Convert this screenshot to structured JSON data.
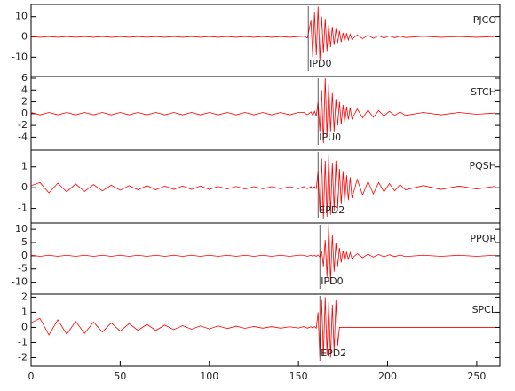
{
  "chart_data": [
    {
      "type": "line",
      "title": "PJCO",
      "color": "#ff0000",
      "pick": {
        "x": 155.5,
        "label": "IPD0"
      },
      "xlim": [
        0,
        263
      ],
      "ylim": [
        -19.5,
        16
      ],
      "yticks": [
        10,
        0,
        -10
      ],
      "x": [
        0,
        5,
        10,
        15,
        20,
        25,
        30,
        35,
        40,
        45,
        50,
        55,
        60,
        65,
        70,
        75,
        80,
        85,
        90,
        95,
        100,
        105,
        110,
        115,
        120,
        125,
        130,
        135,
        140,
        145,
        150,
        153,
        155,
        157,
        158,
        159,
        160,
        161,
        162,
        163,
        164,
        165,
        166,
        167,
        168,
        169,
        170,
        171,
        172,
        173,
        174,
        175,
        176,
        177,
        178,
        179,
        180,
        183,
        186,
        189,
        192,
        195,
        198,
        201,
        204,
        207,
        210,
        220,
        230,
        240,
        250,
        260
      ],
      "values": [
        0.2,
        -0.2,
        0.2,
        -0.2,
        0.2,
        -0.2,
        0.2,
        -0.2,
        0.2,
        -0.2,
        0.2,
        -0.2,
        0.2,
        -0.2,
        0.2,
        -0.2,
        0.2,
        -0.2,
        0.2,
        -0.2,
        0.2,
        -0.2,
        0.2,
        -0.2,
        0.2,
        -0.2,
        0.2,
        -0.2,
        0.2,
        -0.2,
        0.2,
        0.3,
        -0.5,
        8,
        -10,
        12,
        -9,
        15,
        -12,
        10,
        -8,
        9,
        -7,
        6,
        -5,
        5,
        -4,
        4,
        -3,
        3,
        -2.5,
        2,
        -2,
        1.8,
        -1.5,
        1.3,
        -1.2,
        1,
        -0.9,
        0.8,
        -0.7,
        0.6,
        -0.5,
        0.5,
        -0.4,
        0.4,
        -0.3,
        0.3,
        -0.2,
        0.2,
        -0.2,
        0.2
      ]
    },
    {
      "type": "line",
      "title": "STCH",
      "color": "#ff0000",
      "pick": {
        "x": 161,
        "label": "IPU0"
      },
      "xlim": [
        0,
        263
      ],
      "ylim": [
        -6.2,
        6.3
      ],
      "yticks": [
        6,
        4,
        2,
        0,
        -2,
        -4
      ],
      "x": [
        0,
        5,
        10,
        15,
        20,
        25,
        30,
        35,
        40,
        45,
        50,
        55,
        60,
        65,
        70,
        75,
        80,
        85,
        90,
        95,
        100,
        105,
        110,
        115,
        120,
        125,
        130,
        135,
        140,
        145,
        150,
        153,
        155,
        157,
        158,
        159,
        160,
        161,
        162,
        163,
        164,
        165,
        166,
        167,
        168,
        169,
        170,
        171,
        172,
        173,
        174,
        175,
        176,
        177,
        178,
        179,
        180,
        183,
        186,
        189,
        192,
        195,
        198,
        201,
        204,
        207,
        210,
        220,
        230,
        240,
        250,
        260
      ],
      "values": [
        0.2,
        -0.2,
        0.2,
        -0.2,
        0.2,
        -0.2,
        0.2,
        -0.2,
        0.2,
        -0.2,
        0.2,
        -0.2,
        0.2,
        -0.2,
        0.2,
        -0.2,
        0.2,
        -0.2,
        0.2,
        -0.2,
        0.2,
        -0.2,
        0.2,
        -0.2,
        0.2,
        -0.2,
        0.2,
        -0.2,
        0.2,
        -0.2,
        0.2,
        0.2,
        -0.2,
        0.3,
        -0.3,
        0.4,
        -0.4,
        2,
        -3,
        4,
        -5,
        6,
        -4,
        5,
        -3,
        3.5,
        -3,
        2.5,
        -2,
        2,
        -1.8,
        1.5,
        -1.5,
        1.2,
        -1,
        1,
        -0.9,
        0.8,
        -0.7,
        0.6,
        -0.6,
        0.5,
        -0.4,
        0.4,
        -0.3,
        0.3,
        -0.3,
        0.2,
        -0.2,
        0.2,
        -0.1,
        0.1
      ]
    },
    {
      "type": "line",
      "title": "PQSH",
      "color": "#ff0000",
      "pick": {
        "x": 161,
        "label": "EPD2"
      },
      "xlim": [
        0,
        263
      ],
      "ylim": [
        -1.7,
        1.8
      ],
      "yticks": [
        1,
        0,
        -1
      ],
      "x": [
        0,
        5,
        10,
        15,
        20,
        25,
        30,
        35,
        40,
        45,
        50,
        55,
        60,
        65,
        70,
        75,
        80,
        85,
        90,
        95,
        100,
        105,
        110,
        115,
        120,
        125,
        130,
        135,
        140,
        145,
        150,
        153,
        155,
        157,
        158,
        159,
        160,
        161,
        162,
        163,
        164,
        165,
        166,
        167,
        168,
        169,
        170,
        171,
        172,
        173,
        174,
        175,
        176,
        177,
        178,
        179,
        180,
        183,
        186,
        189,
        192,
        195,
        198,
        201,
        204,
        207,
        210,
        220,
        230,
        240,
        250,
        260
      ],
      "values": [
        0.1,
        0.25,
        -0.25,
        0.22,
        -0.2,
        0.18,
        -0.18,
        0.15,
        -0.15,
        0.12,
        -0.12,
        0.1,
        -0.1,
        0.1,
        -0.1,
        0.08,
        -0.08,
        0.08,
        -0.08,
        0.08,
        -0.08,
        0.06,
        -0.06,
        0.06,
        -0.06,
        0.05,
        -0.05,
        0.05,
        -0.05,
        0.05,
        -0.05,
        0.05,
        -0.05,
        0.05,
        -0.05,
        0.05,
        -0.05,
        0.8,
        -1.2,
        1.4,
        -1.5,
        1.3,
        -1.4,
        1.6,
        -1.3,
        1.2,
        -1.1,
        1.3,
        -1,
        0.9,
        -0.8,
        0.8,
        -0.7,
        0.6,
        -0.6,
        0.5,
        -0.5,
        0.4,
        -0.35,
        0.3,
        -0.3,
        0.25,
        -0.2,
        0.2,
        -0.15,
        0.15,
        -0.1,
        0.1,
        -0.08,
        0.08,
        -0.06,
        0.06
      ]
    },
    {
      "type": "line",
      "title": "PPQR",
      "color": "#ff0000",
      "pick": {
        "x": 162,
        "label": "IPD0"
      },
      "xlim": [
        0,
        263
      ],
      "ylim": [
        -14.5,
        12.4
      ],
      "yticks": [
        10,
        5,
        0,
        -5,
        -10
      ],
      "x": [
        0,
        5,
        10,
        15,
        20,
        25,
        30,
        35,
        40,
        45,
        50,
        55,
        60,
        65,
        70,
        75,
        80,
        85,
        90,
        95,
        100,
        105,
        110,
        115,
        120,
        125,
        130,
        135,
        140,
        145,
        150,
        153,
        155,
        157,
        158,
        159,
        160,
        161,
        162,
        163,
        164,
        165,
        166,
        167,
        168,
        169,
        170,
        171,
        172,
        173,
        174,
        175,
        176,
        177,
        178,
        179,
        180,
        183,
        186,
        189,
        192,
        195,
        198,
        201,
        204,
        207,
        210,
        220,
        230,
        240,
        250,
        260
      ],
      "values": [
        0.2,
        -0.2,
        0.2,
        -0.2,
        0.2,
        -0.2,
        0.2,
        -0.2,
        0.2,
        -0.2,
        0.2,
        -0.2,
        0.2,
        -0.2,
        0.2,
        -0.2,
        0.2,
        -0.2,
        0.2,
        -0.2,
        0.2,
        -0.2,
        0.2,
        -0.2,
        0.2,
        -0.2,
        0.2,
        -0.2,
        0.2,
        -0.2,
        0.2,
        0.2,
        -0.2,
        0.2,
        -0.2,
        0.2,
        -0.2,
        0.3,
        -0.5,
        2,
        -4,
        6,
        -8,
        12,
        -10,
        8,
        -6,
        5,
        -4,
        3,
        -2.5,
        2,
        -2,
        1.5,
        -1.5,
        1.2,
        -1,
        0.8,
        -0.7,
        0.6,
        -0.5,
        0.5,
        -0.4,
        0.4,
        -0.3,
        0.3,
        -0.3,
        0.2,
        -0.2,
        0.2,
        -0.2,
        0.2
      ]
    },
    {
      "type": "line",
      "title": "SPCL",
      "color": "#ff0000",
      "pick": {
        "x": 162,
        "label": "EPD2"
      },
      "xlim": [
        0,
        263
      ],
      "ylim": [
        -2.56,
        2.2
      ],
      "yticks": [
        2,
        1,
        0,
        -1,
        -2
      ],
      "xticks": [
        0,
        50,
        100,
        150,
        200,
        250
      ],
      "x": [
        0,
        5,
        10,
        15,
        20,
        25,
        30,
        35,
        40,
        45,
        50,
        55,
        60,
        65,
        70,
        75,
        80,
        85,
        90,
        95,
        100,
        105,
        110,
        115,
        120,
        125,
        130,
        135,
        140,
        145,
        150,
        153,
        155,
        157,
        158,
        159,
        160,
        161,
        162,
        163,
        164,
        165,
        166,
        167,
        168,
        169,
        170,
        171,
        172,
        173,
        174,
        175,
        176,
        177,
        178,
        179,
        180,
        183,
        186,
        189,
        192,
        195,
        198,
        201,
        204,
        207,
        210,
        220,
        230,
        240,
        250,
        260
      ],
      "values": [
        0.3,
        0.6,
        -0.5,
        0.5,
        -0.45,
        0.4,
        -0.4,
        0.35,
        -0.3,
        0.3,
        -0.25,
        0.25,
        -0.2,
        0.2,
        -0.2,
        0.15,
        -0.15,
        0.12,
        -0.12,
        0.1,
        -0.1,
        0.1,
        -0.08,
        0.08,
        -0.06,
        0.06,
        -0.05,
        0.05,
        -0.05,
        0.04,
        -0.04,
        0.05,
        -0.05,
        0.04,
        -0.04,
        0.05,
        -0.05,
        1,
        -2,
        1.8,
        -1.9,
        2,
        -1.8,
        1.7,
        -2,
        1.5,
        -1.6,
        1.8,
        -1.2,
        0,
        0,
        0,
        0,
        0,
        0,
        0,
        0,
        0,
        0,
        0,
        0,
        0,
        0,
        0,
        0,
        0,
        0,
        0,
        0,
        0,
        0,
        0
      ]
    }
  ]
}
